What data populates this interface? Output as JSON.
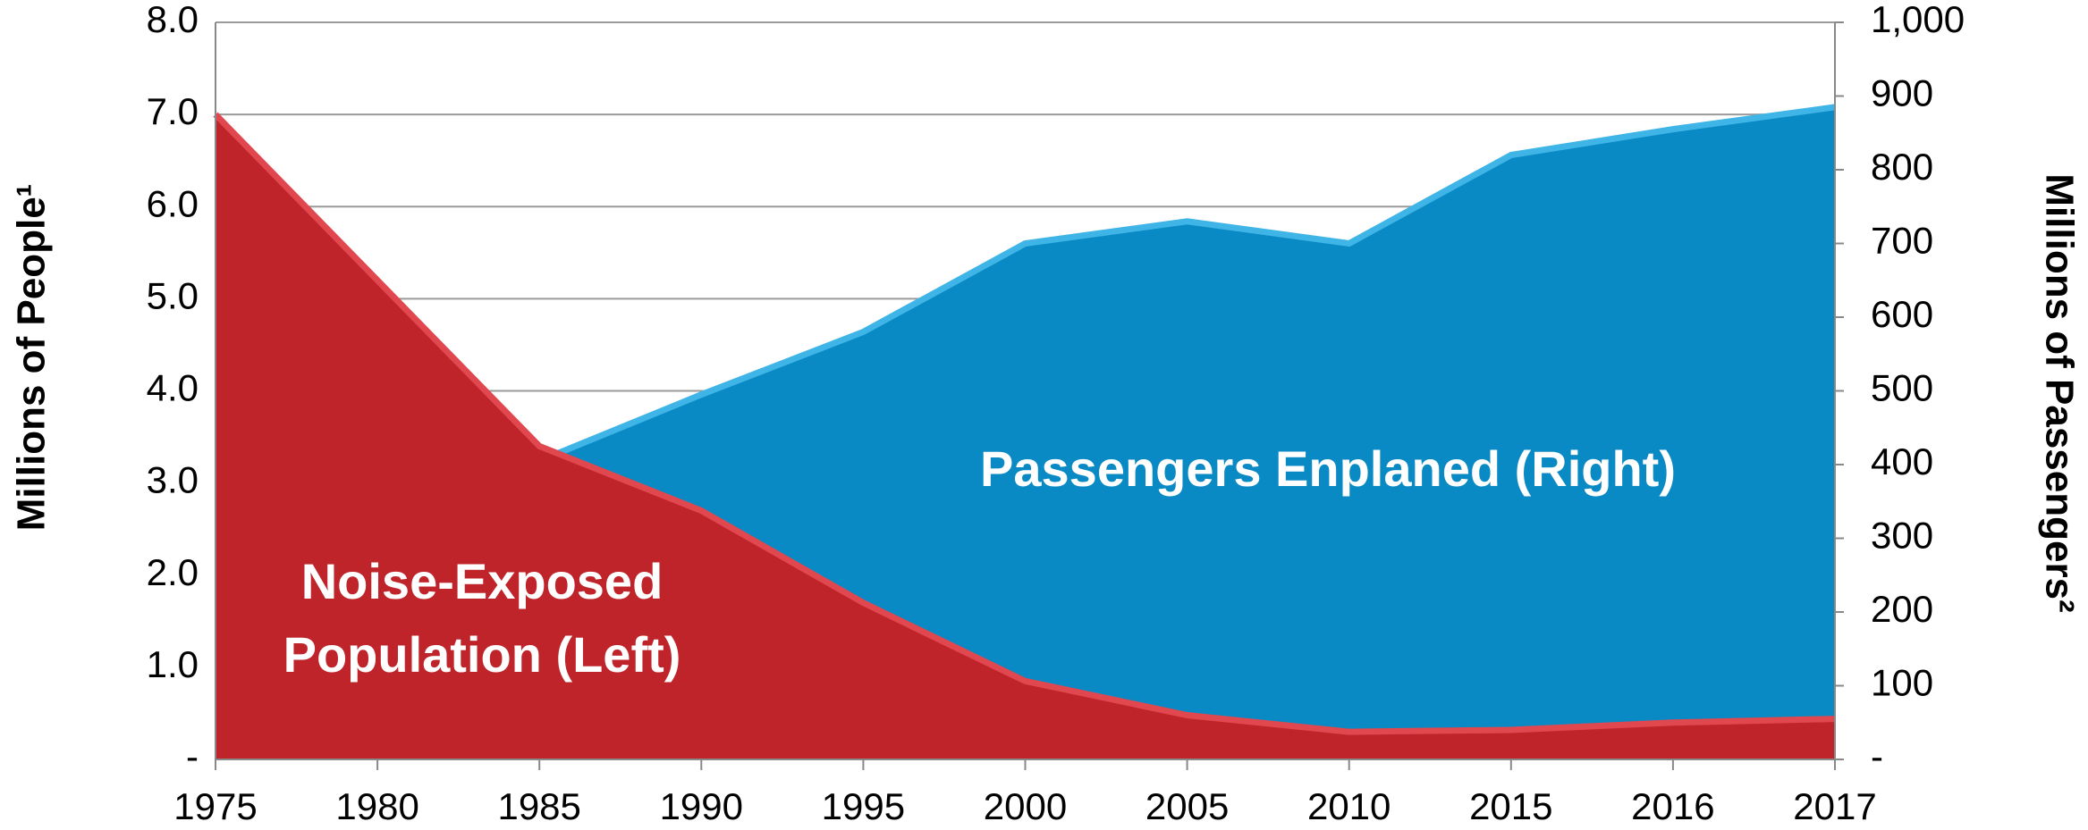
{
  "chart_data": {
    "type": "area",
    "categories": [
      "1975",
      "1980",
      "1985",
      "1990",
      "1995",
      "2000",
      "2005",
      "2010",
      "2015",
      "2016",
      "2017"
    ],
    "series": [
      {
        "name": "Noise-Exposed Population (Left)",
        "color": "#c0242b",
        "axis": "y",
        "values": [
          7.0,
          5.2,
          3.4,
          2.7,
          1.7,
          0.85,
          0.48,
          0.3,
          0.32,
          0.4,
          0.44
        ]
      },
      {
        "name": "Passengers Enplaned (Right)",
        "color": "#0a8ac4",
        "axis": "y2",
        "values": [
          null,
          null,
          405,
          495,
          580,
          700,
          730,
          700,
          820,
          855,
          885
        ]
      }
    ],
    "annotations": [
      "Passengers Enplaned (Right)",
      "Noise-Exposed",
      "Population (Left)"
    ],
    "y_label": "Millions of People¹",
    "y2_label": "Millions of Passengers²",
    "ylim": [
      0,
      8
    ],
    "yticks": [
      {
        "value": 0,
        "label": "-"
      },
      {
        "value": 1,
        "label": "1.0"
      },
      {
        "value": 2,
        "label": "2.0"
      },
      {
        "value": 3,
        "label": "3.0"
      },
      {
        "value": 4,
        "label": "4.0"
      },
      {
        "value": 5,
        "label": "5.0"
      },
      {
        "value": 6,
        "label": "6.0"
      },
      {
        "value": 7,
        "label": "7.0"
      },
      {
        "value": 8,
        "label": "8.0"
      }
    ],
    "y2lim": [
      0,
      1000
    ],
    "y2ticks": [
      {
        "value": 0,
        "label": "-"
      },
      100,
      200,
      300,
      400,
      500,
      600,
      700,
      800,
      900,
      {
        "value": 1000,
        "label": "1,000"
      }
    ],
    "grid": true
  }
}
